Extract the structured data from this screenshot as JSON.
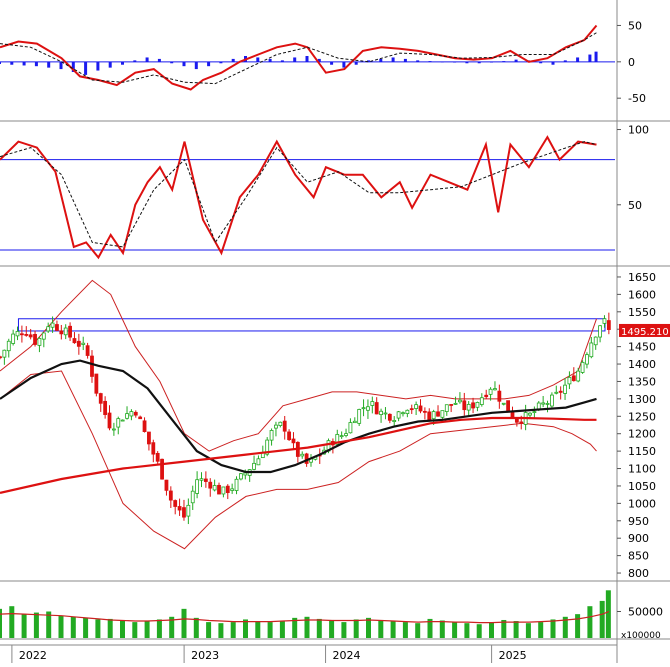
{
  "colors": {
    "up": "#22aa22",
    "down": "#dd1111",
    "macd_hist": "#1a1aee",
    "macd_line": "#dd1111",
    "signal_line": "#111111",
    "ma_short": "#111111",
    "ma_long": "#dd1111",
    "bands": "#cc2222",
    "band_box": "#1a1aee",
    "volume": "#22aa22",
    "volume_ma": "#cc2222",
    "price_tag_bg": "#dd1111"
  },
  "last_price_label": "1495.210",
  "volume_unit": "x100000",
  "chart_data": [
    {
      "type": "line",
      "panel": "macd",
      "ylim": [
        -80,
        85
      ],
      "yticks": [
        "50",
        "0",
        "-50"
      ],
      "ytick_values": [
        50,
        0,
        -50
      ],
      "series": [
        {
          "role": "macd",
          "x": [
            0,
            0.03,
            0.06,
            0.1,
            0.13,
            0.16,
            0.19,
            0.22,
            0.25,
            0.28,
            0.31,
            0.33,
            0.36,
            0.39,
            0.42,
            0.45,
            0.48,
            0.5,
            0.53,
            0.56,
            0.59,
            0.62,
            0.65,
            0.68,
            0.71,
            0.74,
            0.77,
            0.8,
            0.83,
            0.86,
            0.89,
            0.92,
            0.95,
            0.97
          ],
          "values": [
            20,
            28,
            25,
            5,
            -20,
            -25,
            -32,
            -15,
            -10,
            -30,
            -38,
            -25,
            -15,
            0,
            10,
            20,
            25,
            20,
            -15,
            -10,
            15,
            20,
            18,
            15,
            10,
            5,
            3,
            5,
            15,
            0,
            5,
            20,
            30,
            50
          ]
        },
        {
          "role": "signal",
          "x": [
            0,
            0.05,
            0.1,
            0.15,
            0.2,
            0.25,
            0.3,
            0.35,
            0.4,
            0.45,
            0.5,
            0.55,
            0.6,
            0.65,
            0.7,
            0.75,
            0.8,
            0.85,
            0.9,
            0.95,
            0.97
          ],
          "values": [
            25,
            20,
            0,
            -25,
            -28,
            -18,
            -28,
            -30,
            -10,
            10,
            20,
            5,
            0,
            12,
            10,
            5,
            6,
            10,
            10,
            30,
            40
          ]
        }
      ],
      "hist_x": [
        0.0,
        0.02,
        0.04,
        0.06,
        0.08,
        0.1,
        0.12,
        0.14,
        0.16,
        0.18,
        0.2,
        0.22,
        0.24,
        0.26,
        0.28,
        0.3,
        0.32,
        0.34,
        0.36,
        0.38,
        0.4,
        0.42,
        0.44,
        0.46,
        0.48,
        0.5,
        0.52,
        0.54,
        0.56,
        0.58,
        0.6,
        0.62,
        0.64,
        0.66,
        0.68,
        0.7,
        0.72,
        0.74,
        0.76,
        0.78,
        0.8,
        0.82,
        0.84,
        0.86,
        0.88,
        0.9,
        0.92,
        0.94,
        0.96,
        0.97
      ],
      "hist_values": [
        -3,
        -4,
        -5,
        -6,
        -8,
        -10,
        -14,
        -18,
        -12,
        -8,
        -4,
        2,
        6,
        4,
        -2,
        -6,
        -10,
        -6,
        -2,
        4,
        8,
        6,
        4,
        2,
        6,
        8,
        4,
        -4,
        -8,
        -4,
        2,
        4,
        6,
        4,
        2,
        1,
        0,
        -1,
        -2,
        -2,
        -1,
        1,
        3,
        2,
        -2,
        -4,
        2,
        6,
        10,
        14
      ]
    },
    {
      "type": "line",
      "panel": "stochastic",
      "ylim": [
        10,
        105
      ],
      "yticks": [
        "100",
        "50"
      ],
      "ytick_values": [
        100,
        50
      ],
      "hlines": [
        80,
        20
      ],
      "series": [
        {
          "role": "k",
          "x": [
            0,
            0.03,
            0.06,
            0.09,
            0.12,
            0.14,
            0.16,
            0.18,
            0.2,
            0.22,
            0.24,
            0.26,
            0.28,
            0.3,
            0.33,
            0.36,
            0.39,
            0.42,
            0.45,
            0.48,
            0.51,
            0.53,
            0.56,
            0.59,
            0.62,
            0.65,
            0.67,
            0.7,
            0.73,
            0.76,
            0.79,
            0.81,
            0.83,
            0.86,
            0.89,
            0.91,
            0.94,
            0.97
          ],
          "values": [
            80,
            92,
            88,
            72,
            22,
            25,
            15,
            30,
            18,
            50,
            65,
            75,
            60,
            92,
            40,
            18,
            55,
            70,
            92,
            70,
            55,
            75,
            70,
            70,
            55,
            65,
            48,
            70,
            65,
            60,
            90,
            45,
            90,
            75,
            95,
            80,
            92,
            90
          ]
        },
        {
          "role": "d",
          "x": [
            0,
            0.05,
            0.1,
            0.15,
            0.2,
            0.25,
            0.3,
            0.35,
            0.4,
            0.45,
            0.5,
            0.55,
            0.6,
            0.65,
            0.7,
            0.75,
            0.8,
            0.85,
            0.9,
            0.95,
            0.97
          ],
          "values": [
            82,
            88,
            70,
            25,
            22,
            60,
            80,
            25,
            55,
            88,
            65,
            72,
            58,
            58,
            60,
            62,
            70,
            78,
            85,
            92,
            90
          ]
        }
      ]
    },
    {
      "type": "line",
      "panel": "price",
      "ylim": [
        780,
        1670
      ],
      "yticks": [
        "1650",
        "1600",
        "1550",
        "1500",
        "1450",
        "1400",
        "1350",
        "1300",
        "1250",
        "1200",
        "1150",
        "1100",
        "1050",
        "1000",
        "950",
        "900",
        "850",
        "800"
      ],
      "ytick_values": [
        1650,
        1600,
        1550,
        1500,
        1450,
        1400,
        1350,
        1300,
        1250,
        1200,
        1150,
        1100,
        1050,
        1000,
        950,
        900,
        850,
        800
      ],
      "band_box": {
        "y_top": 1530,
        "y_bottom": 1495,
        "x_start": 0.03,
        "x_end": 1.0
      },
      "close_x": [
        0,
        0.02,
        0.04,
        0.06,
        0.08,
        0.1,
        0.12,
        0.14,
        0.16,
        0.18,
        0.2,
        0.22,
        0.24,
        0.26,
        0.28,
        0.3,
        0.32,
        0.34,
        0.36,
        0.38,
        0.4,
        0.42,
        0.44,
        0.46,
        0.48,
        0.5,
        0.52,
        0.54,
        0.56,
        0.58,
        0.6,
        0.62,
        0.64,
        0.66,
        0.68,
        0.7,
        0.72,
        0.74,
        0.76,
        0.78,
        0.8,
        0.82,
        0.84,
        0.86,
        0.88,
        0.9,
        0.92,
        0.94,
        0.96,
        0.98,
        0.99
      ],
      "close_values": [
        1420,
        1480,
        1500,
        1460,
        1520,
        1500,
        1470,
        1440,
        1300,
        1220,
        1250,
        1270,
        1180,
        1100,
        1000,
        960,
        1070,
        1060,
        1030,
        1050,
        1090,
        1130,
        1200,
        1230,
        1150,
        1110,
        1140,
        1180,
        1200,
        1260,
        1290,
        1260,
        1250,
        1280,
        1270,
        1250,
        1270,
        1290,
        1270,
        1300,
        1340,
        1280,
        1240,
        1250,
        1280,
        1300,
        1340,
        1380,
        1460,
        1530,
        1495
      ],
      "series": [
        {
          "role": "ma_short",
          "x": [
            0,
            0.05,
            0.1,
            0.13,
            0.16,
            0.2,
            0.24,
            0.28,
            0.32,
            0.36,
            0.4,
            0.44,
            0.48,
            0.52,
            0.56,
            0.6,
            0.64,
            0.68,
            0.72,
            0.76,
            0.8,
            0.84,
            0.88,
            0.92,
            0.95,
            0.97
          ],
          "values": [
            1300,
            1360,
            1400,
            1410,
            1395,
            1380,
            1330,
            1240,
            1150,
            1110,
            1090,
            1090,
            1110,
            1140,
            1175,
            1200,
            1220,
            1235,
            1240,
            1250,
            1260,
            1265,
            1270,
            1275,
            1290,
            1300
          ]
        },
        {
          "role": "ma_long",
          "x": [
            0,
            0.1,
            0.2,
            0.3,
            0.4,
            0.5,
            0.6,
            0.7,
            0.75,
            0.8,
            0.85,
            0.9,
            0.95,
            0.97
          ],
          "values": [
            1030,
            1070,
            1100,
            1120,
            1140,
            1160,
            1190,
            1230,
            1240,
            1245,
            1245,
            1243,
            1240,
            1240
          ]
        },
        {
          "role": "band_upper",
          "x": [
            0,
            0.05,
            0.1,
            0.15,
            0.18,
            0.22,
            0.26,
            0.3,
            0.34,
            0.38,
            0.42,
            0.46,
            0.5,
            0.54,
            0.58,
            0.62,
            0.66,
            0.7,
            0.74,
            0.78,
            0.82,
            0.86,
            0.9,
            0.94,
            0.97
          ],
          "values": [
            1380,
            1450,
            1550,
            1640,
            1600,
            1450,
            1350,
            1200,
            1150,
            1180,
            1200,
            1280,
            1300,
            1320,
            1320,
            1310,
            1300,
            1310,
            1300,
            1300,
            1300,
            1310,
            1340,
            1380,
            1530
          ]
        },
        {
          "role": "band_lower",
          "x": [
            0,
            0.05,
            0.1,
            0.15,
            0.2,
            0.25,
            0.3,
            0.35,
            0.4,
            0.45,
            0.5,
            0.55,
            0.6,
            0.65,
            0.7,
            0.75,
            0.8,
            0.85,
            0.9,
            0.93,
            0.96,
            0.97
          ],
          "values": [
            1300,
            1370,
            1380,
            1200,
            1000,
            920,
            870,
            960,
            1020,
            1040,
            1040,
            1060,
            1120,
            1150,
            1200,
            1210,
            1220,
            1230,
            1220,
            1200,
            1170,
            1150
          ]
        }
      ]
    },
    {
      "type": "bar",
      "panel": "volume",
      "ylim": [
        0,
        100000
      ],
      "yticks": [
        "50000"
      ],
      "ytick_values": [
        50000
      ],
      "x": [
        0.0,
        0.02,
        0.04,
        0.06,
        0.08,
        0.1,
        0.12,
        0.14,
        0.16,
        0.18,
        0.2,
        0.22,
        0.24,
        0.26,
        0.28,
        0.3,
        0.32,
        0.34,
        0.36,
        0.38,
        0.4,
        0.42,
        0.44,
        0.46,
        0.48,
        0.5,
        0.52,
        0.54,
        0.56,
        0.58,
        0.6,
        0.62,
        0.64,
        0.66,
        0.68,
        0.7,
        0.72,
        0.74,
        0.76,
        0.78,
        0.8,
        0.82,
        0.84,
        0.86,
        0.88,
        0.9,
        0.92,
        0.94,
        0.96,
        0.98,
        0.99
      ],
      "values": [
        55000,
        60000,
        45000,
        48000,
        50000,
        42000,
        40000,
        38000,
        35000,
        36000,
        33000,
        30000,
        32000,
        35000,
        40000,
        55000,
        38000,
        30000,
        28000,
        30000,
        35000,
        32000,
        30000,
        33000,
        38000,
        40000,
        36000,
        34000,
        30000,
        35000,
        38000,
        34000,
        32000,
        30000,
        28000,
        36000,
        33000,
        30000,
        28000,
        26000,
        30000,
        34000,
        32000,
        28000,
        30000,
        35000,
        40000,
        45000,
        60000,
        70000,
        90000
      ],
      "ma_values": [
        45000,
        46000,
        45000,
        44000,
        43000,
        42000,
        40000,
        38000,
        36000,
        34000,
        33000,
        32000,
        32000,
        33000,
        34000,
        36000,
        35000,
        33000,
        32000,
        31000,
        31000,
        31000,
        31000,
        32000,
        33000,
        34000,
        34000,
        33000,
        33000,
        33000,
        34000,
        33000,
        32000,
        31000,
        30000,
        31000,
        31000,
        30000,
        30000,
        29000,
        29000,
        30000,
        30000,
        30000,
        31000,
        32000,
        34000,
        36000,
        40000,
        45000,
        50000
      ]
    }
  ],
  "x_axis": {
    "labels": [
      "2022",
      "2023",
      "2024",
      "2025"
    ],
    "positions": [
      0.06,
      0.34,
      0.57,
      0.84
    ]
  }
}
